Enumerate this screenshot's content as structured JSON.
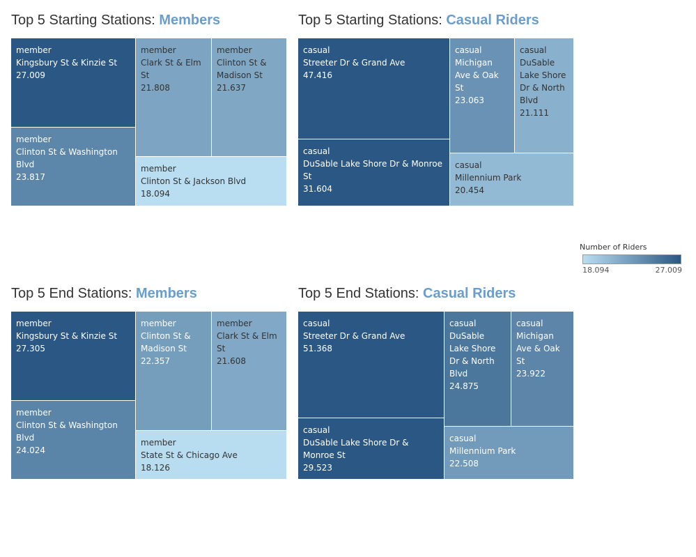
{
  "legend": {
    "title": "Number of Riders",
    "min_label": "18.094",
    "max_label": "27.009",
    "color_low": "#b9ddf1",
    "color_high": "#2a5783"
  },
  "chart_data": [
    {
      "type": "treemap",
      "title_prefix": "Top 5 Starting Stations: ",
      "title_highlight": "Members",
      "items": [
        {
          "group": "member",
          "station": "Kingsbury St & Kinzie St",
          "value": 27.009,
          "display": "27.009"
        },
        {
          "group": "member",
          "station": "Clinton St & Washington Blvd",
          "value": 23.817,
          "display": "23.817"
        },
        {
          "group": "member",
          "station": "Clark St & Elm St",
          "value": 21.808,
          "display": "21.808"
        },
        {
          "group": "member",
          "station": "Clinton St & Madison St",
          "value": 21.637,
          "display": "21.637"
        },
        {
          "group": "member",
          "station": "Clinton St & Jackson Blvd",
          "value": 18.094,
          "display": "18.094"
        }
      ]
    },
    {
      "type": "treemap",
      "title_prefix": "Top 5 Starting Stations: ",
      "title_highlight": "Casual Riders",
      "items": [
        {
          "group": "casual",
          "station": "Streeter Dr & Grand Ave",
          "value": 47.416,
          "display": "47.416"
        },
        {
          "group": "casual",
          "station": "DuSable Lake Shore Dr & Monroe St",
          "value": 31.604,
          "display": "31.604"
        },
        {
          "group": "casual",
          "station": "Michigan Ave & Oak St",
          "value": 23.063,
          "display": "23.063"
        },
        {
          "group": "casual",
          "station": "DuSable Lake Shore Dr & North Blvd",
          "value": 21.111,
          "display": "21.111"
        },
        {
          "group": "casual",
          "station": "Millennium Park",
          "value": 20.454,
          "display": "20.454"
        }
      ]
    },
    {
      "type": "treemap",
      "title_prefix": "Top 5 End Stations: ",
      "title_highlight": "Members",
      "items": [
        {
          "group": "member",
          "station": "Kingsbury St & Kinzie St",
          "value": 27.305,
          "display": "27.305"
        },
        {
          "group": "member",
          "station": "Clinton St & Washington Blvd",
          "value": 24.024,
          "display": "24.024"
        },
        {
          "group": "member",
          "station": "Clinton St & Madison St",
          "value": 22.357,
          "display": "22.357"
        },
        {
          "group": "member",
          "station": "Clark St & Elm St",
          "value": 21.608,
          "display": "21.608"
        },
        {
          "group": "member",
          "station": "State St & Chicago Ave",
          "value": 18.126,
          "display": "18.126"
        }
      ]
    },
    {
      "type": "treemap",
      "title_prefix": "Top 5 End Stations: ",
      "title_highlight": "Casual Riders",
      "items": [
        {
          "group": "casual",
          "station": "Streeter Dr & Grand Ave",
          "value": 51.368,
          "display": "51.368"
        },
        {
          "group": "casual",
          "station": "DuSable Lake Shore Dr & Monroe St",
          "value": 29.523,
          "display": "29.523"
        },
        {
          "group": "casual",
          "station": "DuSable Lake Shore Dr & North Blvd",
          "value": 24.875,
          "display": "24.875"
        },
        {
          "group": "casual",
          "station": "Michigan Ave & Oak St",
          "value": 23.922,
          "display": "23.922"
        },
        {
          "group": "casual",
          "station": "Millennium Park",
          "value": 22.508,
          "display": "22.508"
        }
      ]
    }
  ]
}
